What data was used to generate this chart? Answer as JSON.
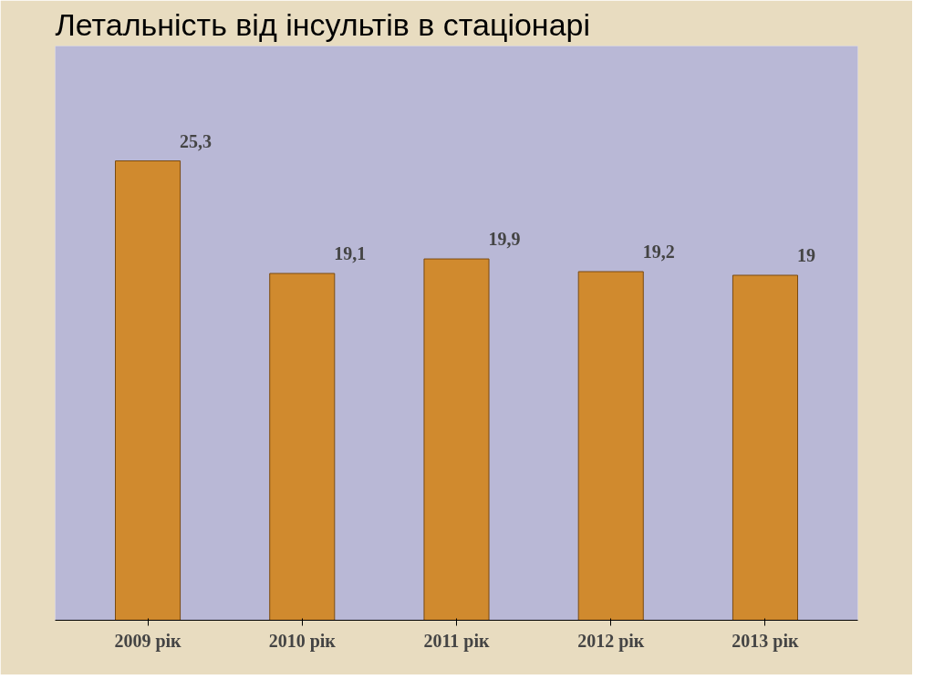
{
  "chart_data": {
    "type": "bar",
    "title": "Летальність від інсультів в стаціонарі",
    "categories": [
      "2009 рік",
      "2010 рік",
      "2011 рік",
      "2012 рік",
      "2013 рік"
    ],
    "values": [
      25.3,
      19.1,
      19.9,
      19.2,
      19
    ],
    "value_labels": [
      "25,3",
      "19,1",
      "19,9",
      "19,2",
      "19"
    ],
    "color": "#d08a2e"
  }
}
